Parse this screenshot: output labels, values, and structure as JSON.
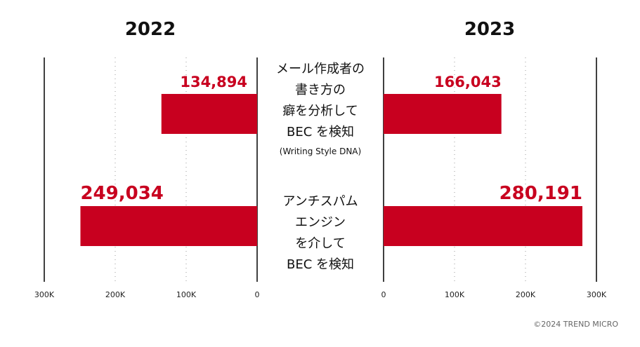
{
  "chart_data": {
    "type": "bar",
    "orientation": "horizontal-butterfly",
    "categories": [
      {
        "lines": [
          "メール作成者の",
          "書き方の",
          "癖を分析して",
          "BEC を検知"
        ],
        "sub": "(Writing Style DNA)"
      },
      {
        "lines": [
          "アンチスパム",
          "エンジン",
          "を介して",
          "BEC を検知"
        ],
        "sub": ""
      }
    ],
    "series": [
      {
        "name": "2022",
        "values": [
          134894,
          249034
        ],
        "labels": [
          "134,894",
          "249,034"
        ]
      },
      {
        "name": "2023",
        "values": [
          166043,
          280191
        ],
        "labels": [
          "166,043",
          "280,191"
        ]
      }
    ],
    "xlim": [
      0,
      300000
    ],
    "ticks": [
      0,
      100000,
      200000,
      300000
    ],
    "tick_labels": [
      "0",
      "100K",
      "200K",
      "300K"
    ],
    "grid": true,
    "bar_color": "#c8001f"
  },
  "footer": {
    "copyright": "©2024 TREND MICRO"
  }
}
